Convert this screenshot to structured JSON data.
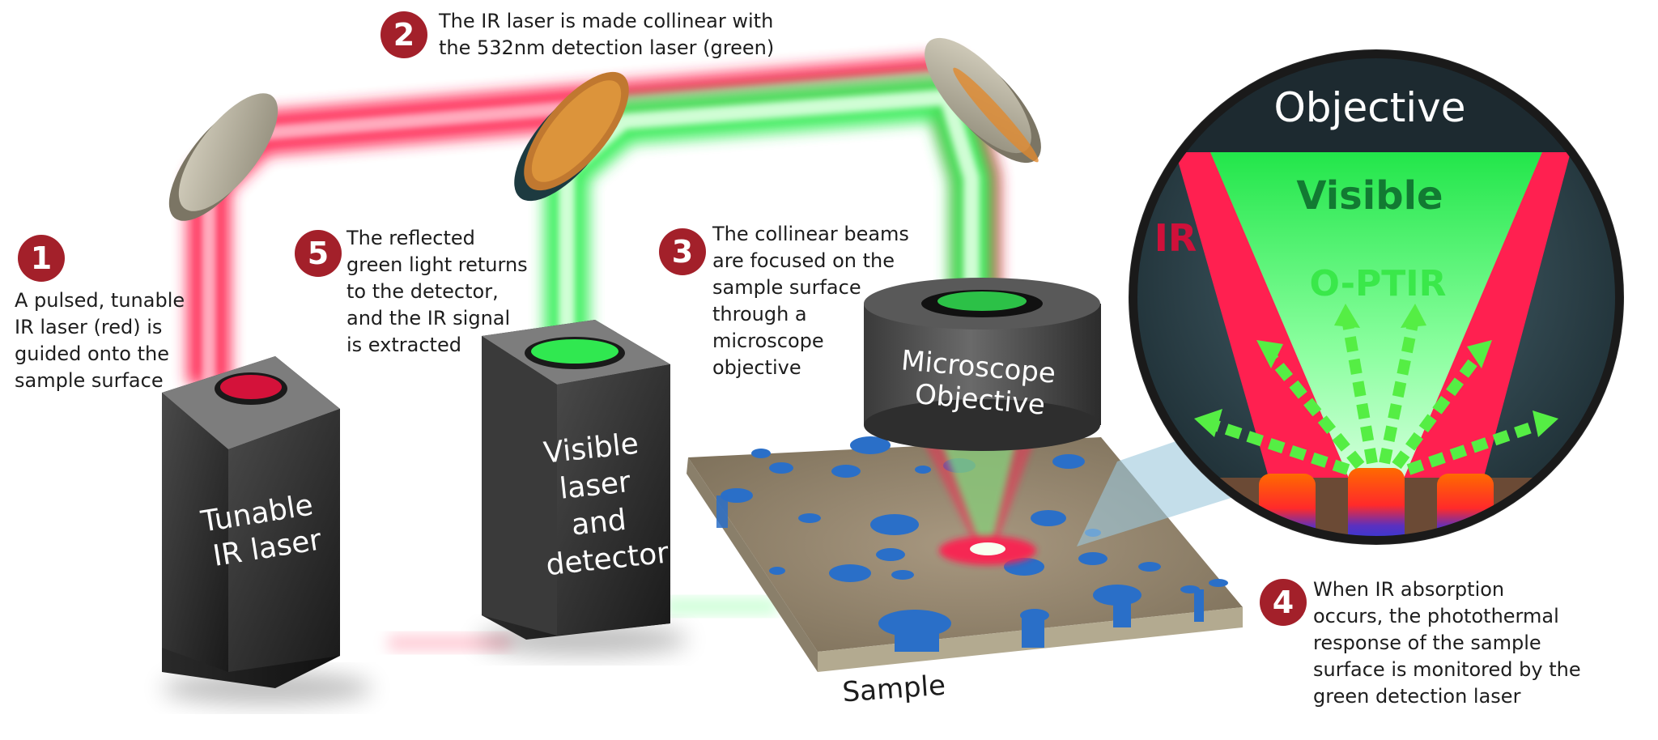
{
  "steps": [
    {
      "number": "1",
      "lines": [
        "A pulsed, tunable",
        "IR laser (red) is",
        "guided onto the",
        "sample surface"
      ]
    },
    {
      "number": "2",
      "lines": [
        "The IR laser is made collinear with",
        "the 532nm detection laser (green)"
      ]
    },
    {
      "number": "3",
      "lines": [
        "The collinear beams",
        "are focused on the",
        "sample surface",
        "through a",
        "microscope",
        "objective"
      ]
    },
    {
      "number": "4",
      "lines": [
        "When IR absorption",
        "occurs, the photothermal",
        "response of the sample",
        "surface is monitored by the",
        "green detection laser"
      ]
    },
    {
      "number": "5",
      "lines": [
        "The reflected",
        "green light returns",
        "to the detector,",
        "and the IR signal",
        "is extracted"
      ]
    }
  ],
  "devices": {
    "ir_laser_lines": [
      "Tunable",
      "IR laser"
    ],
    "detector_lines": [
      "Visible",
      "laser",
      "and",
      "detector"
    ],
    "objective_lines": [
      "Microscope",
      "Objective"
    ],
    "sample_label": "Sample"
  },
  "inset": {
    "objective_label": "Objective",
    "visible_label": "Visible",
    "ir_label": "IR",
    "optir_label": "O-PTIR"
  },
  "colors": {
    "badge": "#a3202a",
    "ir_red": "#ff2050",
    "visible_green": "#33ee55",
    "box_dark": "#2c2c2c",
    "sample_blue": "#2a6fc8"
  }
}
